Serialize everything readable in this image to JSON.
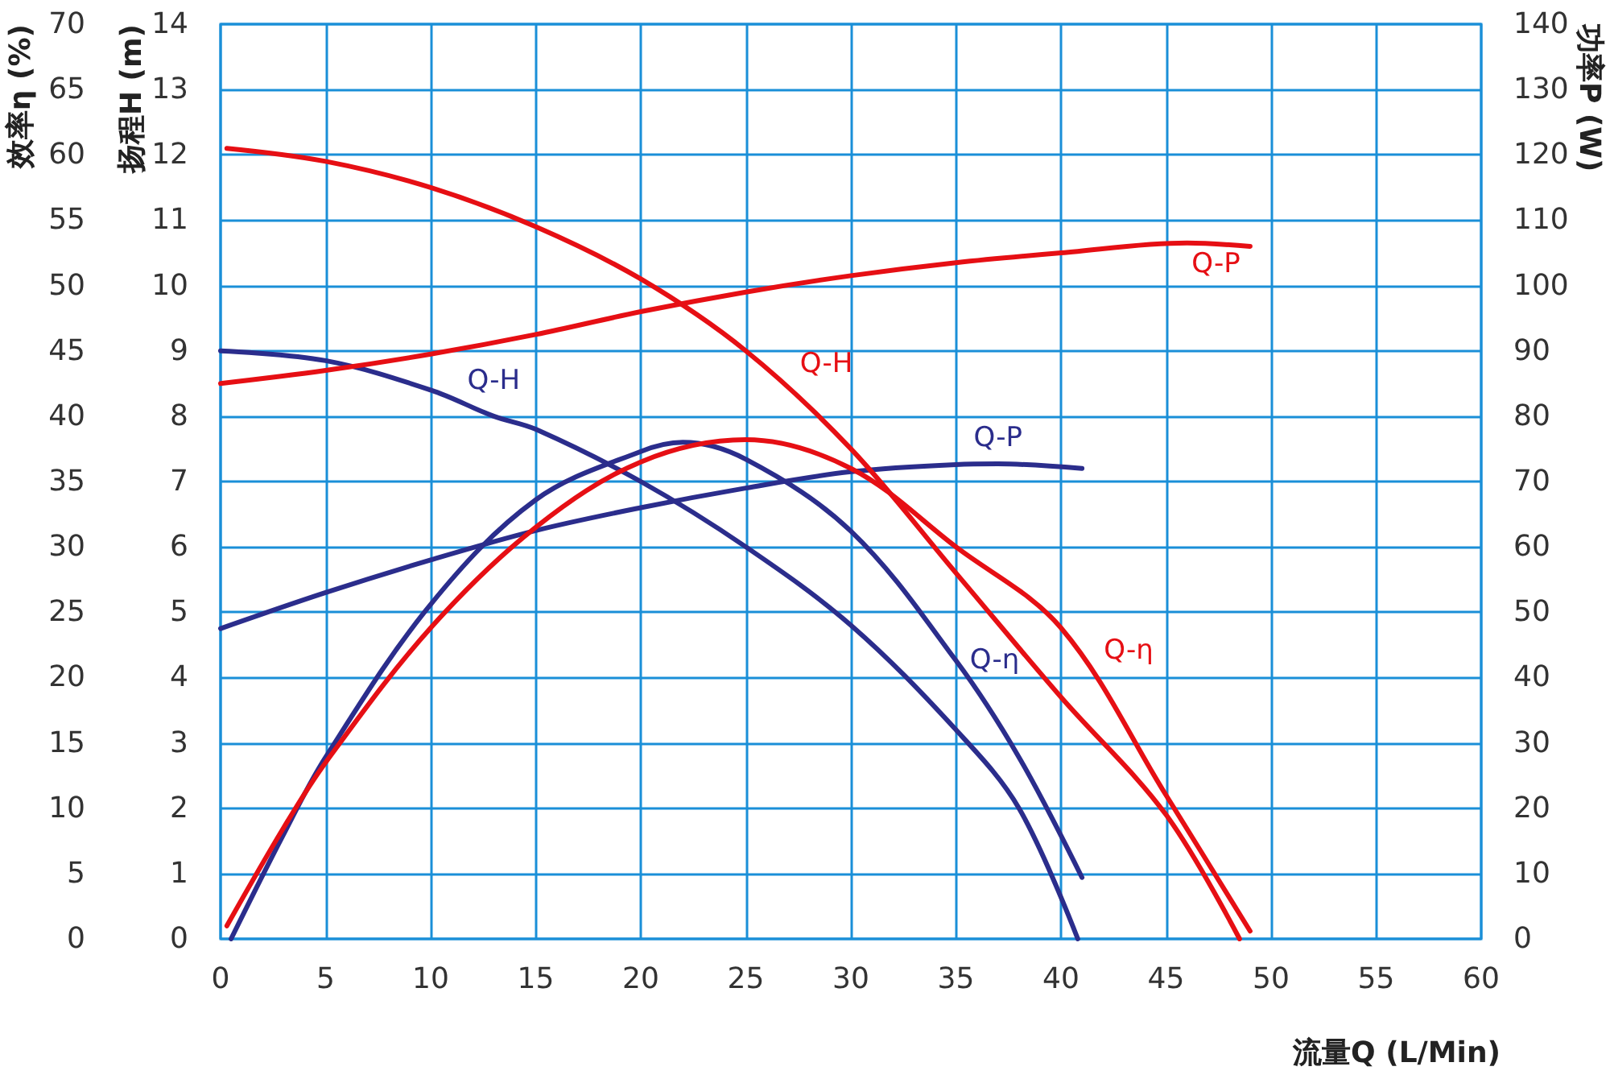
{
  "chart_data": {
    "type": "line",
    "xlabel": "流量Q (L/Min)",
    "ylabel": "扬程H (m)",
    "y2label": "功率P (W)",
    "y3label": "效率η (%)",
    "xlim": [
      0,
      60
    ],
    "xticks": [
      0,
      5,
      10,
      15,
      20,
      25,
      30,
      35,
      40,
      45,
      50,
      55,
      60
    ],
    "ylim": [
      0,
      14
    ],
    "yticks": [
      0,
      1,
      2,
      3,
      4,
      5,
      6,
      7,
      8,
      9,
      10,
      11,
      12,
      13,
      14
    ],
    "y2lim": [
      0,
      140
    ],
    "y2ticks": [
      0,
      10,
      20,
      30,
      40,
      50,
      60,
      70,
      80,
      90,
      100,
      110,
      120,
      130,
      140
    ],
    "y3lim": [
      0,
      70
    ],
    "y3ticks": [
      0,
      5,
      10,
      15,
      20,
      25,
      30,
      35,
      40,
      45,
      50,
      55,
      60,
      65,
      70
    ],
    "grid": true,
    "legend": false,
    "marker": "none",
    "line_style": "solid",
    "series": [
      {
        "name": "Q-H",
        "color": "#2b2d8c",
        "x": [
          0,
          5,
          10,
          13,
          15,
          20,
          25,
          30,
          35,
          38,
          40.8
        ],
        "values": [
          9.0,
          8.85,
          8.4,
          8.0,
          7.8,
          7.0,
          6.0,
          4.8,
          3.2,
          2.0,
          0
        ]
      },
      {
        "name": "Q-η",
        "color": "#2b2d8c",
        "axis": "y3",
        "x": [
          0.5,
          3,
          5,
          10,
          15,
          20,
          22,
          25,
          30,
          35,
          38,
          41
        ],
        "values": [
          0,
          8,
          13.9,
          25.6,
          33.6,
          37.3,
          38,
          36.7,
          31.2,
          21.3,
          13.9,
          4.7
        ]
      },
      {
        "name": "Q-P",
        "color": "#2b2d8c",
        "axis": "y2",
        "x": [
          0,
          5,
          10,
          15,
          20,
          25,
          30,
          35,
          37,
          41
        ],
        "values": [
          47.5,
          53,
          58,
          62.5,
          66,
          69,
          71.5,
          72.6,
          72.7,
          72
        ]
      },
      {
        "name": "Q-H",
        "color": "#e60f14",
        "x": [
          0.3,
          5,
          10,
          15,
          20,
          25,
          30,
          35,
          40,
          45,
          48.5
        ],
        "values": [
          12.1,
          11.9,
          11.5,
          10.9,
          10.1,
          9.0,
          7.5,
          5.6,
          3.7,
          1.9,
          0
        ]
      },
      {
        "name": "Q-η",
        "color": "#e60f14",
        "axis": "y3",
        "x": [
          0.3,
          3,
          5,
          10,
          15,
          20,
          25,
          30,
          35,
          40,
          45,
          49
        ],
        "values": [
          1,
          8.5,
          13.5,
          23.8,
          31.5,
          36.5,
          38.2,
          36,
          30,
          23.8,
          11,
          0.6
        ]
      },
      {
        "name": "Q-P",
        "color": "#e60f14",
        "axis": "y2",
        "x": [
          0,
          5,
          10,
          15,
          20,
          25,
          30,
          35,
          40,
          46,
          49
        ],
        "values": [
          85,
          87,
          89.5,
          92.5,
          96,
          99,
          101.5,
          103.5,
          105,
          106.5,
          106
        ]
      }
    ]
  }
}
